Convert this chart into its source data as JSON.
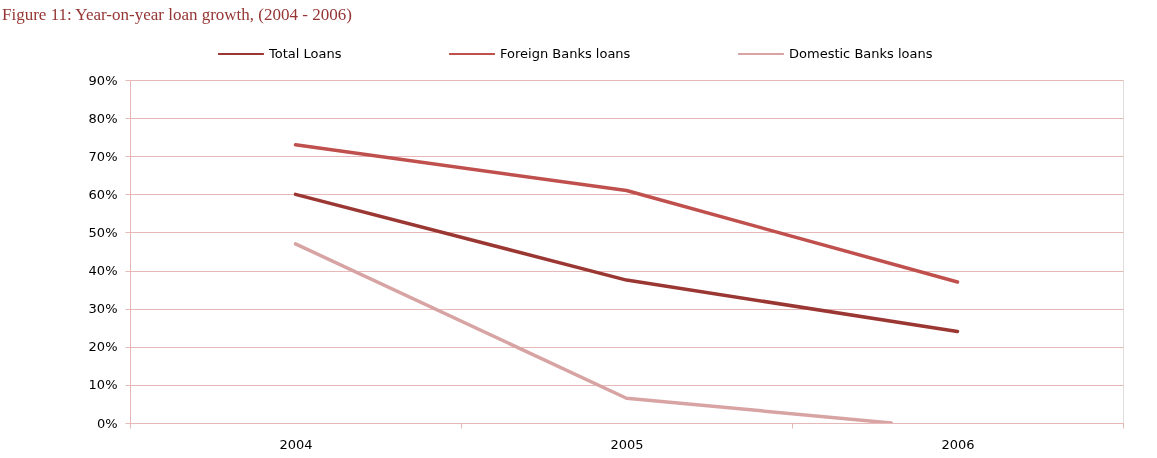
{
  "chart_data": {
    "type": "line",
    "title": "Figure 11: Year-on-year loan growth, (2004 - 2006)",
    "x": [
      2004,
      2005,
      2006
    ],
    "series": [
      {
        "name": "Total Loans",
        "color": "#9b3733",
        "values": [
          60,
          37.5,
          24
        ]
      },
      {
        "name": "Foreign Banks loans",
        "color": "#c0504d",
        "values": [
          73,
          61,
          37
        ]
      },
      {
        "name": "Domestic Banks loans",
        "color": "#d8a3a3",
        "x": [
          2004,
          2005,
          2005.8
        ],
        "values": [
          47,
          6.5,
          0
        ]
      }
    ],
    "xlim": [
      2003.5,
      2006.5
    ],
    "xticks": [
      {
        "value": 2003.5,
        "label": null
      },
      2004,
      {
        "value": 2004.5,
        "label": null
      },
      2005,
      {
        "value": 2005.5,
        "label": null
      },
      2006,
      {
        "value": 2006.5,
        "label": null
      }
    ],
    "ylim": [
      0,
      90
    ],
    "yticks": [
      {
        "value": 0,
        "label": "0%"
      },
      {
        "value": 10,
        "label": "10%"
      },
      {
        "value": 20,
        "label": "20%"
      },
      {
        "value": 30,
        "label": "30%"
      },
      {
        "value": 40,
        "label": "40%"
      },
      {
        "value": 50,
        "label": "50%"
      },
      {
        "value": 60,
        "label": "60%"
      },
      {
        "value": 70,
        "label": "70%"
      },
      {
        "value": 80,
        "label": "80%"
      },
      {
        "value": 90,
        "label": "90%"
      }
    ],
    "grid": "y",
    "legend": "top",
    "marker": "none",
    "line_style": "solid"
  }
}
